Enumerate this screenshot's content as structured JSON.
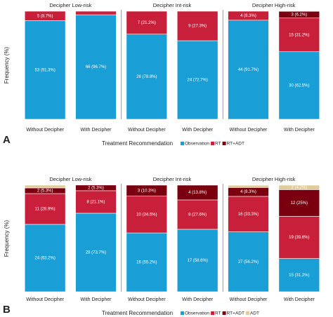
{
  "chart_data": [
    {
      "type": "bar",
      "stacked": true,
      "panel_label": "A",
      "ylabel": "Frequency (%)",
      "legend_title": "Treatment Recommendation",
      "facets": [
        "Decipher Low-risk",
        "Decipher Int-risk",
        "Decipher High-risk"
      ],
      "categories": [
        "Without Decipher",
        "With Decipher",
        "Without Decipher",
        "With Decipher",
        "Without Decipher",
        "With Decipher"
      ],
      "ylim": [
        0,
        100
      ],
      "series": [
        {
          "name": "Observation",
          "color": "#1a9ed6",
          "values": [
            91.3,
            96.7,
            78.8,
            72.7,
            91.7,
            62.5
          ],
          "value_labels": [
            "53 (91.3%)",
            "66 (96.7%)",
            "26 (78.8%)",
            "24 (72.7%)",
            "44 (91.7%)",
            "30 (62.5%)"
          ]
        },
        {
          "name": "RT",
          "color": "#c8203a",
          "values": [
            8.7,
            3.3,
            21.2,
            27.3,
            8.3,
            31.2
          ],
          "value_labels": [
            "5 (8.7%)",
            null,
            "7 (21.2%)",
            "9 (27.3%)",
            "4 (8.3%)",
            "15 (31.2%)"
          ]
        },
        {
          "name": "RT+ADT",
          "color": "#7a0010",
          "values": [
            null,
            null,
            null,
            null,
            null,
            6.2
          ],
          "value_labels": [
            null,
            null,
            null,
            null,
            null,
            "3 (6.2%)"
          ]
        }
      ]
    },
    {
      "type": "bar",
      "stacked": true,
      "panel_label": "B",
      "ylabel": "Frequency (%)",
      "legend_title": "Treatment Recommendation",
      "facets": [
        "Decipher Low-risk",
        "Decipher Int-risk",
        "Decipher High-risk"
      ],
      "categories": [
        "Without Decipher",
        "With Decipher",
        "Without Decipher",
        "With Decipher",
        "Without Decipher",
        "With Decipher"
      ],
      "ylim": [
        0,
        100
      ],
      "series": [
        {
          "name": "Observation",
          "color": "#1a9ed6",
          "values": [
            63.2,
            73.7,
            55.2,
            58.6,
            56.2,
            31.2
          ],
          "value_labels": [
            "24 (63.2%)",
            "28 (73.7%)",
            "16 (55.2%)",
            "17 (58.6%)",
            "27 (56.2%)",
            "15 (31.2%)"
          ]
        },
        {
          "name": "RT",
          "color": "#c8203a",
          "values": [
            28.9,
            21.1,
            34.5,
            27.6,
            33.3,
            39.6
          ],
          "value_labels": [
            "11 (28.9%)",
            "8 (21.1%)",
            "10 (34.5%)",
            "8 (27.6%)",
            "16 (33.3%)",
            "19 (39.6%)"
          ]
        },
        {
          "name": "RT+ADT",
          "color": "#7a0010",
          "values": [
            5.3,
            5.3,
            10.3,
            13.8,
            8.3,
            25
          ],
          "value_labels": [
            "2 (5.3%)",
            "2 (5.3%)",
            "3 (10.3%)",
            "4 (13.8%)",
            "4 (8.3%)",
            "12 (25%)"
          ]
        },
        {
          "name": "ADT",
          "color": "#e0cc98",
          "values": [
            2.6,
            null,
            null,
            null,
            2.1,
            4.2
          ],
          "value_labels": [
            null,
            null,
            null,
            null,
            null,
            "2 (4.2%)"
          ]
        }
      ]
    }
  ]
}
